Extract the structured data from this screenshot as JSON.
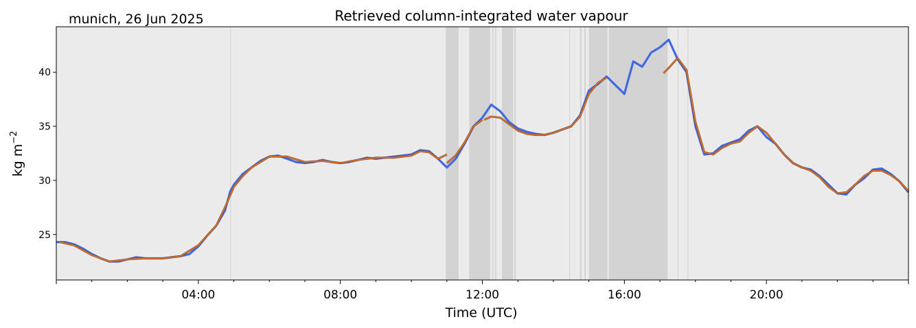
{
  "location_date": "munich, 26 Jun 2025",
  "chart_data": {
    "type": "line",
    "title": "Retrieved column-integrated water vapour",
    "xlabel": "Time (UTC)",
    "ylabel_main": "kg m",
    "ylabel_sup": "−2",
    "xlim_hours": [
      0,
      24
    ],
    "ylim": [
      20.8,
      44.2
    ],
    "x_ticks": [
      {
        "hour": 4,
        "label": "04:00"
      },
      {
        "hour": 8,
        "label": "08:00"
      },
      {
        "hour": 12,
        "label": "12:00"
      },
      {
        "hour": 16,
        "label": "16:00"
      },
      {
        "hour": 20,
        "label": "20:00"
      }
    ],
    "y_ticks": [
      {
        "value": 25,
        "label": "25"
      },
      {
        "value": 30,
        "label": "30"
      },
      {
        "value": 35,
        "label": "35"
      },
      {
        "value": 40,
        "label": "40"
      }
    ],
    "grid": false,
    "colors": {
      "background": "#ebebeb",
      "shade": "#d3d3d3",
      "raw": "#4169e1",
      "smooth": "#e07b39",
      "smooth_edge": "#8b4513"
    },
    "shaded_intervals_hours": [
      [
        4.9,
        4.92
      ],
      [
        10.97,
        11.33
      ],
      [
        11.63,
        12.22
      ],
      [
        12.28,
        12.31
      ],
      [
        12.36,
        12.39
      ],
      [
        12.55,
        12.87
      ],
      [
        12.9,
        12.94
      ],
      [
        14.45,
        14.47
      ],
      [
        14.75,
        14.79
      ],
      [
        14.87,
        14.91
      ],
      [
        15.0,
        15.52
      ],
      [
        15.56,
        17.22
      ],
      [
        17.5,
        17.52
      ],
      [
        17.78,
        17.8
      ]
    ],
    "series": [
      {
        "x": [
          0.0,
          0.25,
          0.5,
          0.75,
          1.0,
          1.25,
          1.5,
          1.75,
          2.0,
          2.25,
          2.5,
          2.75,
          3.0,
          3.25,
          3.5,
          3.75,
          4.0,
          4.25,
          4.5,
          4.75,
          4.9,
          5.0,
          5.25,
          5.5,
          5.75,
          6.0,
          6.25,
          6.5,
          6.75,
          7.0,
          7.25,
          7.5,
          7.75,
          8.0,
          8.25,
          8.5,
          8.75,
          9.0,
          9.25,
          9.5,
          9.75,
          10.0,
          10.25,
          10.5,
          10.75,
          11.0,
          11.25,
          11.5,
          11.75,
          12.0,
          12.25,
          12.5,
          12.75,
          13.0,
          13.25,
          13.5,
          13.75,
          14.0,
          14.25,
          14.5,
          14.75,
          15.0,
          15.25,
          15.5,
          15.75,
          16.0,
          16.25,
          16.5,
          16.75,
          17.0,
          17.25,
          17.5,
          17.75,
          18.0,
          18.25,
          18.5,
          18.75,
          19.0,
          19.25,
          19.5,
          19.75,
          20.0,
          20.25,
          20.5,
          20.75,
          21.0,
          21.25,
          21.5,
          21.75,
          22.0,
          22.25,
          22.5,
          22.75,
          23.0,
          23.25,
          23.5,
          23.75,
          24.0
        ],
        "y": [
          24.3,
          24.3,
          24.1,
          23.7,
          23.2,
          22.8,
          22.5,
          22.5,
          22.7,
          22.9,
          22.8,
          22.8,
          22.8,
          22.9,
          23.0,
          23.2,
          23.9,
          24.9,
          25.8,
          27.2,
          29.0,
          29.6,
          30.6,
          31.2,
          31.8,
          32.2,
          32.3,
          32.0,
          31.7,
          31.6,
          31.7,
          31.9,
          31.7,
          31.6,
          31.7,
          31.9,
          32.1,
          32.0,
          32.1,
          32.2,
          32.3,
          32.4,
          32.8,
          32.7,
          32.0,
          31.2,
          32.0,
          33.4,
          35.0,
          35.8,
          37.0,
          36.4,
          35.4,
          34.8,
          34.5,
          34.3,
          34.2,
          34.4,
          34.7,
          35.0,
          36.0,
          38.3,
          38.9,
          39.6,
          38.8,
          38.0,
          41.0,
          40.5,
          41.8,
          42.3,
          43.0,
          41.2,
          40.0,
          35.0,
          32.4,
          32.5,
          33.2,
          33.5,
          33.8,
          34.6,
          35.0,
          34.0,
          33.4,
          32.4,
          31.6,
          31.2,
          31.0,
          30.4,
          29.6,
          28.8,
          28.7,
          29.6,
          30.2,
          31.0,
          31.1,
          30.6,
          29.9,
          28.9
        ]
      },
      {
        "x": [
          0.1,
          0.5,
          1.0,
          1.5,
          2.0,
          2.5,
          3.0,
          3.5,
          4.0,
          4.5,
          4.75,
          5.0,
          5.25,
          5.5,
          6.0,
          6.5,
          7.0,
          7.5,
          8.0,
          8.5,
          9.0,
          9.5,
          10.0,
          10.25,
          10.5,
          10.75,
          11.0
        ],
        "y": [
          24.3,
          24.0,
          23.1,
          22.5,
          22.7,
          22.8,
          22.8,
          23.0,
          24.0,
          25.8,
          27.5,
          29.4,
          30.4,
          31.2,
          32.2,
          32.2,
          31.7,
          31.8,
          31.6,
          31.9,
          32.1,
          32.1,
          32.3,
          32.7,
          32.6,
          32.0,
          32.4
        ]
      },
      {
        "x": [
          11.0,
          11.25,
          11.5,
          11.75,
          12.0
        ],
        "y": [
          31.6,
          32.3,
          33.5,
          35.0,
          35.6
        ]
      },
      {
        "x": [
          12.05,
          12.25,
          12.5,
          12.75,
          13.0,
          13.25,
          13.5,
          13.75,
          14.0,
          14.25,
          14.5,
          14.75,
          15.0,
          15.25,
          15.5
        ],
        "y": [
          35.6,
          35.9,
          35.8,
          35.2,
          34.6,
          34.3,
          34.2,
          34.2,
          34.4,
          34.7,
          35.0,
          35.9,
          38.0,
          39.0,
          39.5
        ]
      },
      {
        "x": [
          17.1,
          17.25,
          17.5,
          17.75,
          18.0,
          18.25,
          18.5,
          18.75,
          19.0,
          19.25,
          19.5,
          19.75,
          20.0,
          20.25,
          20.5,
          20.75,
          21.0,
          21.25,
          21.5,
          21.75,
          22.0,
          22.25,
          22.5,
          22.75,
          23.0,
          23.25,
          23.5,
          23.75,
          24.0
        ],
        "y": [
          39.9,
          40.4,
          41.3,
          40.2,
          35.4,
          32.6,
          32.4,
          33.0,
          33.4,
          33.6,
          34.4,
          35.0,
          34.4,
          33.4,
          32.4,
          31.6,
          31.2,
          30.9,
          30.3,
          29.4,
          28.8,
          28.9,
          29.6,
          30.4,
          30.9,
          30.9,
          30.5,
          29.9,
          29.0
        ]
      }
    ]
  }
}
